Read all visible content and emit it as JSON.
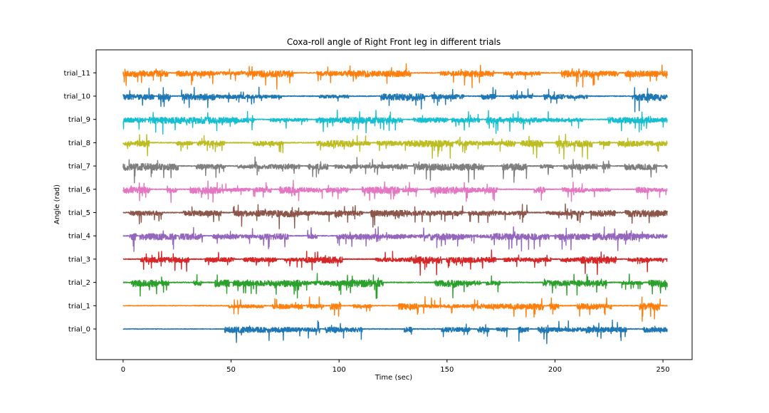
{
  "chart_data": {
    "type": "line",
    "title": "Coxa-roll angle of Right Front leg in different trials",
    "xlabel": "Time (sec)",
    "ylabel": "Angle (rad)",
    "xlim": [
      -12.5,
      263.5
    ],
    "x_ticks": [
      0,
      50,
      100,
      150,
      200,
      250
    ],
    "x_range": [
      0,
      252
    ],
    "grid": false,
    "legend": "none",
    "series": [
      {
        "label": "trial_0",
        "color": "#1f77b4",
        "active": [
          [
            47,
            252
          ]
        ]
      },
      {
        "label": "trial_1",
        "color": "#ff7f0e",
        "active": [
          [
            33,
            252
          ]
        ]
      },
      {
        "label": "trial_2",
        "color": "#2ca02c",
        "active": [
          [
            0,
            252
          ]
        ]
      },
      {
        "label": "trial_3",
        "color": "#d62728",
        "active": [
          [
            0,
            252
          ]
        ]
      },
      {
        "label": "trial_4",
        "color": "#9467bd",
        "active": [
          [
            0,
            252
          ]
        ]
      },
      {
        "label": "trial_5",
        "color": "#8c564b",
        "active": [
          [
            0,
            252
          ]
        ]
      },
      {
        "label": "trial_6",
        "color": "#e377c2",
        "active": [
          [
            0,
            252
          ]
        ]
      },
      {
        "label": "trial_7",
        "color": "#7f7f7f",
        "active": [
          [
            0,
            252
          ]
        ]
      },
      {
        "label": "trial_8",
        "color": "#bcbd22",
        "active": [
          [
            0,
            252
          ]
        ]
      },
      {
        "label": "trial_9",
        "color": "#17becf",
        "active": [
          [
            0,
            252
          ]
        ]
      },
      {
        "label": "trial_10",
        "color": "#1f77b4",
        "active": [
          [
            0,
            252
          ]
        ]
      },
      {
        "label": "trial_11",
        "color": "#ff7f0e",
        "active": [
          [
            0,
            252
          ]
        ]
      }
    ]
  }
}
